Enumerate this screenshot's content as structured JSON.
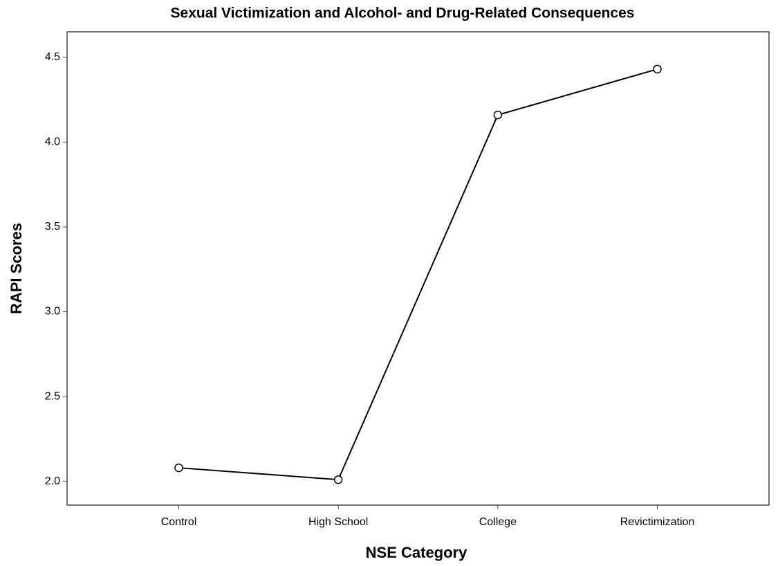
{
  "chart_data": {
    "type": "line",
    "title": "Sexual Victimization and Alcohol- and Drug-Related Consequences",
    "x_label": "NSE Category",
    "y_label": "RAPI Scores",
    "categories": [
      "Control",
      "High School",
      "College",
      "Revictimization"
    ],
    "values": [
      2.08,
      2.01,
      4.16,
      4.43
    ],
    "color": "#000000",
    "ylim": [
      1.86,
      4.65
    ],
    "yticks": [
      {
        "value": 2.0,
        "label": "2.0"
      },
      2.5,
      {
        "value": 3.0,
        "label": "3.0"
      },
      3.5,
      {
        "value": 4.0,
        "label": "4.0"
      },
      4.5
    ],
    "grid": false
  }
}
